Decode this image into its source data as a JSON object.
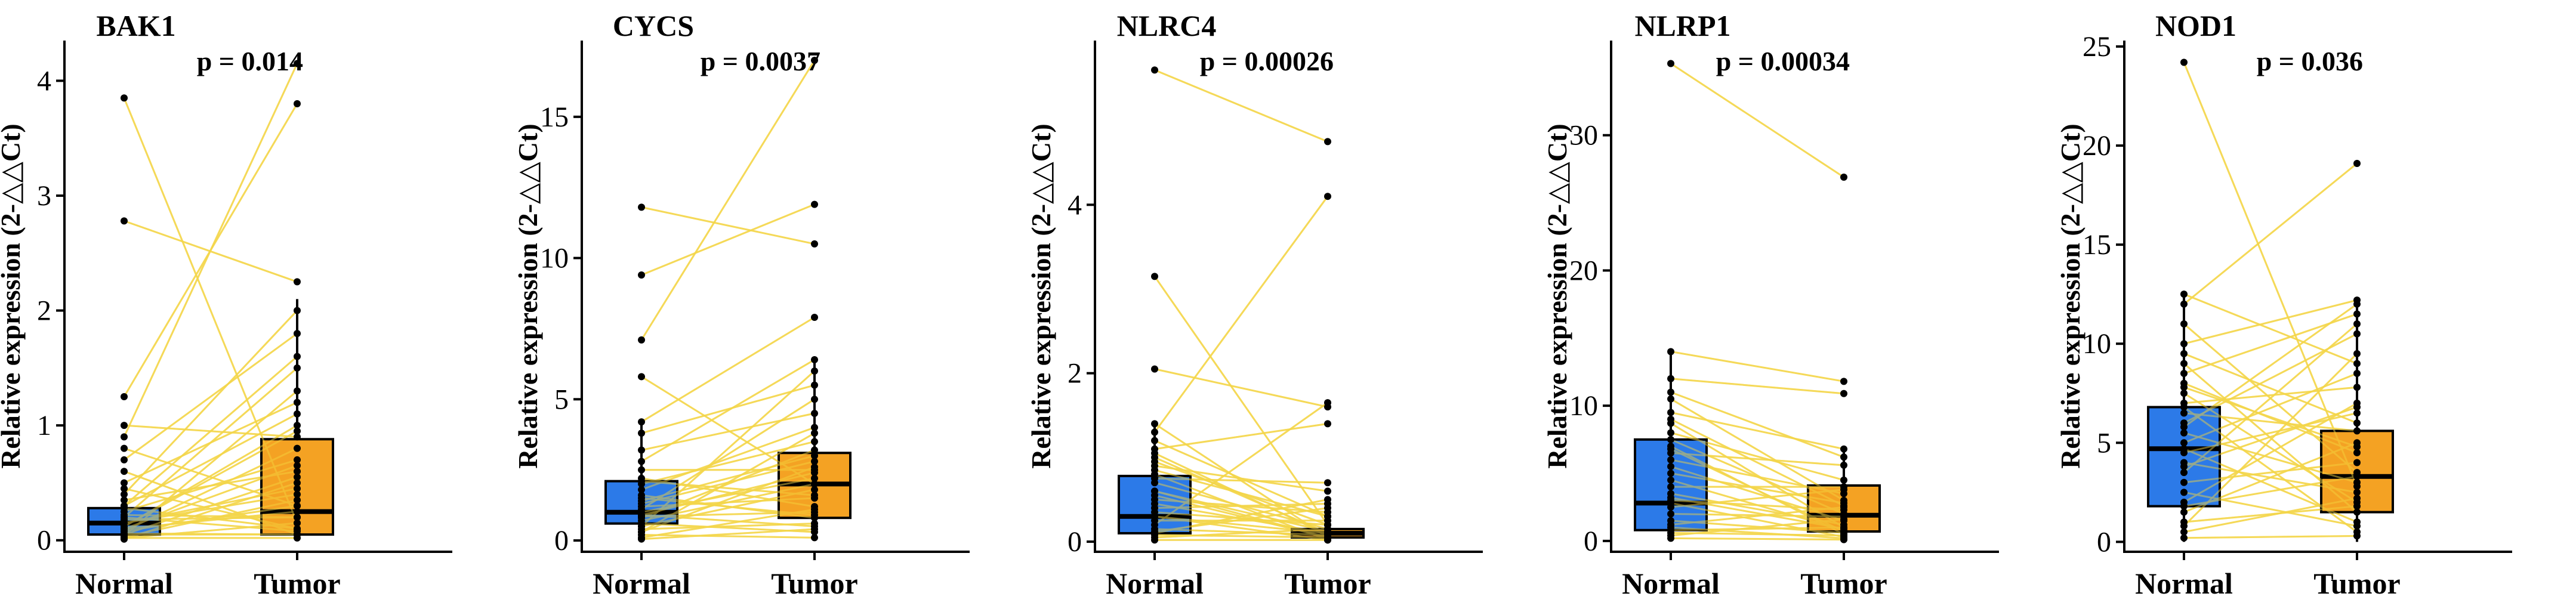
{
  "figure": {
    "ylabel": "Relative expression (2-△△Ct)",
    "groups": [
      "Normal",
      "Tumor"
    ],
    "colors": {
      "normal": "#1a6fe6",
      "tumor": "#f39a10",
      "pair_line": "#f3d64a",
      "axis": "#000000"
    }
  },
  "chart_data": [
    {
      "type": "box",
      "title": "BAK1",
      "pvalue": "p = 0.014",
      "xlabel": "",
      "ylabel": "Relative expression (2-△△Ct)",
      "categories": [
        "Normal",
        "Tumor"
      ],
      "ylim": [
        -0.1,
        4.35
      ],
      "yticks": [
        0,
        1,
        2,
        3,
        4
      ],
      "normal": {
        "q1": 0.05,
        "median": 0.15,
        "q3": 0.28,
        "whisker_low": 0.0,
        "whisker_high": 0.5
      },
      "tumor": {
        "q1": 0.05,
        "median": 0.25,
        "q3": 0.88,
        "whisker_low": 0.0,
        "whisker_high": 2.1
      },
      "pairs": [
        [
          3.85,
          0.15
        ],
        [
          2.78,
          2.25
        ],
        [
          1.25,
          3.8
        ],
        [
          1.0,
          0.9
        ],
        [
          0.9,
          4.15
        ],
        [
          0.8,
          0.3
        ],
        [
          0.7,
          1.8
        ],
        [
          0.6,
          0.05
        ],
        [
          0.5,
          1.2
        ],
        [
          0.4,
          2.0
        ],
        [
          0.35,
          0.6
        ],
        [
          0.3,
          1.6
        ],
        [
          0.28,
          0.1
        ],
        [
          0.25,
          0.7
        ],
        [
          0.2,
          1.5
        ],
        [
          0.18,
          0.2
        ],
        [
          0.15,
          0.45
        ],
        [
          0.12,
          1.0
        ],
        [
          0.1,
          0.25
        ],
        [
          0.08,
          0.8
        ],
        [
          0.06,
          0.05
        ],
        [
          0.05,
          0.55
        ],
        [
          0.04,
          1.3
        ],
        [
          0.03,
          0.35
        ],
        [
          0.02,
          0.02
        ],
        [
          0.02,
          0.15
        ],
        [
          0.01,
          0.5
        ],
        [
          0.05,
          0.05
        ],
        [
          0.1,
          0.65
        ],
        [
          0.15,
          0.4
        ],
        [
          0.2,
          0.08
        ],
        [
          0.3,
          1.1
        ],
        [
          0.22,
          0.2
        ],
        [
          0.12,
          0.95
        ],
        [
          0.08,
          0.3
        ],
        [
          0.45,
          0.1
        ]
      ]
    },
    {
      "type": "box",
      "title": "CYCS",
      "pvalue": "p = 0.0037",
      "xlabel": "",
      "ylabel": "Relative expression (2-△△Ct)",
      "categories": [
        "Normal",
        "Tumor"
      ],
      "ylim": [
        -0.4,
        17.7
      ],
      "yticks": [
        0,
        5,
        10,
        15
      ],
      "normal": {
        "q1": 0.6,
        "median": 1.0,
        "q3": 2.1,
        "whisker_low": 0.0,
        "whisker_high": 4.2
      },
      "tumor": {
        "q1": 0.8,
        "median": 2.0,
        "q3": 3.1,
        "whisker_low": 0.0,
        "whisker_high": 6.4
      },
      "pairs": [
        [
          11.8,
          10.5
        ],
        [
          9.4,
          11.9
        ],
        [
          7.1,
          17.0
        ],
        [
          5.8,
          2.0
        ],
        [
          4.2,
          7.9
        ],
        [
          3.8,
          5.5
        ],
        [
          3.2,
          4.5
        ],
        [
          2.8,
          6.4
        ],
        [
          2.5,
          2.5
        ],
        [
          2.2,
          1.2
        ],
        [
          2.0,
          3.5
        ],
        [
          1.8,
          4.0
        ],
        [
          1.6,
          0.8
        ],
        [
          1.4,
          3.0
        ],
        [
          1.3,
          2.8
        ],
        [
          1.2,
          1.5
        ],
        [
          1.1,
          5.0
        ],
        [
          1.0,
          2.2
        ],
        [
          0.9,
          0.5
        ],
        [
          0.85,
          1.0
        ],
        [
          0.8,
          3.2
        ],
        [
          0.7,
          2.0
        ],
        [
          0.6,
          0.3
        ],
        [
          0.5,
          1.8
        ],
        [
          0.4,
          0.6
        ],
        [
          0.3,
          2.6
        ],
        [
          0.2,
          0.1
        ],
        [
          0.1,
          1.1
        ],
        [
          0.05,
          0.4
        ],
        [
          0.5,
          6.0
        ],
        [
          0.9,
          2.4
        ],
        [
          1.5,
          0.9
        ],
        [
          0.3,
          3.8
        ],
        [
          2.1,
          1.6
        ]
      ]
    },
    {
      "type": "box",
      "title": "NLRC4",
      "pvalue": "p = 0.00026",
      "xlabel": "",
      "ylabel": "Relative expression (2-△△Ct)",
      "categories": [
        "Normal",
        "Tumor"
      ],
      "ylim": [
        -0.12,
        5.95
      ],
      "yticks": [
        0,
        2,
        4
      ],
      "normal": {
        "q1": 0.1,
        "median": 0.3,
        "q3": 0.78,
        "whisker_low": 0.0,
        "whisker_high": 1.4
      },
      "tumor": {
        "q1": 0.05,
        "median": 0.1,
        "q3": 0.15,
        "whisker_low": 0.0,
        "whisker_high": 0.3
      },
      "pairs": [
        [
          5.6,
          4.75
        ],
        [
          3.15,
          0.2
        ],
        [
          2.05,
          1.6
        ],
        [
          1.4,
          0.05
        ],
        [
          1.3,
          4.1
        ],
        [
          1.2,
          0.3
        ],
        [
          1.1,
          1.4
        ],
        [
          1.0,
          0.1
        ],
        [
          0.9,
          0.6
        ],
        [
          0.8,
          0.02
        ],
        [
          0.75,
          0.7
        ],
        [
          0.7,
          0.15
        ],
        [
          0.6,
          0.05
        ],
        [
          0.5,
          0.35
        ],
        [
          0.45,
          0.1
        ],
        [
          0.4,
          0.45
        ],
        [
          0.35,
          0.2
        ],
        [
          0.3,
          0.02
        ],
        [
          0.25,
          0.25
        ],
        [
          0.2,
          1.65
        ],
        [
          0.15,
          0.08
        ],
        [
          0.1,
          0.5
        ],
        [
          0.08,
          0.05
        ],
        [
          0.05,
          0.15
        ],
        [
          0.02,
          0.02
        ],
        [
          0.6,
          0.12
        ],
        [
          1.05,
          0.08
        ],
        [
          0.85,
          0.3
        ],
        [
          0.3,
          0.1
        ],
        [
          0.12,
          0.4
        ],
        [
          0.55,
          0.05
        ],
        [
          0.95,
          0.2
        ]
      ]
    },
    {
      "type": "box",
      "title": "NLRP1",
      "pvalue": "p = 0.00034",
      "xlabel": "",
      "ylabel": "Relative expression (2-△△Ct)",
      "categories": [
        "Normal",
        "Tumor"
      ],
      "ylim": [
        -0.8,
        37.0
      ],
      "yticks": [
        0,
        10,
        20,
        30
      ],
      "normal": {
        "q1": 0.8,
        "median": 2.8,
        "q3": 7.5,
        "whisker_low": 0.0,
        "whisker_high": 14.0
      },
      "tumor": {
        "q1": 0.7,
        "median": 1.9,
        "q3": 4.1,
        "whisker_low": 0.0,
        "whisker_high": 7.0
      },
      "pairs": [
        [
          35.3,
          26.9
        ],
        [
          14.0,
          11.8
        ],
        [
          12.0,
          10.9
        ],
        [
          10.5,
          3.0
        ],
        [
          9.5,
          6.8
        ],
        [
          8.7,
          1.0
        ],
        [
          8.0,
          4.5
        ],
        [
          7.5,
          2.0
        ],
        [
          7.0,
          0.5
        ],
        [
          6.5,
          5.6
        ],
        [
          6.0,
          3.5
        ],
        [
          5.5,
          1.5
        ],
        [
          5.0,
          2.8
        ],
        [
          4.5,
          0.8
        ],
        [
          4.0,
          4.0
        ],
        [
          3.5,
          1.2
        ],
        [
          3.0,
          2.3
        ],
        [
          2.8,
          0.3
        ],
        [
          2.5,
          3.8
        ],
        [
          2.0,
          1.8
        ],
        [
          1.5,
          0.6
        ],
        [
          1.2,
          2.5
        ],
        [
          1.0,
          0.2
        ],
        [
          0.8,
          1.0
        ],
        [
          0.6,
          0.4
        ],
        [
          0.4,
          1.6
        ],
        [
          0.2,
          0.1
        ],
        [
          9.0,
          2.6
        ],
        [
          11.0,
          6.2
        ],
        [
          3.2,
          0.9
        ],
        [
          6.8,
          0.7
        ]
      ]
    },
    {
      "type": "box",
      "title": "NOD1",
      "pvalue": "p = 0.036",
      "xlabel": "",
      "ylabel": "Relative expression (2-△△Ct)",
      "categories": [
        "Normal",
        "Tumor"
      ],
      "ylim": [
        -0.5,
        25.3
      ],
      "yticks": [
        0,
        5,
        10,
        15,
        20,
        25
      ],
      "normal": {
        "q1": 1.8,
        "median": 4.7,
        "q3": 6.8,
        "whisker_low": 0.0,
        "whisker_high": 12.5
      },
      "tumor": {
        "q1": 1.5,
        "median": 3.3,
        "q3": 5.6,
        "whisker_low": 0.0,
        "whisker_high": 12.3
      },
      "pairs": [
        [
          24.2,
          2.8
        ],
        [
          12.5,
          9.0
        ],
        [
          12.0,
          19.1
        ],
        [
          11.0,
          3.5
        ],
        [
          10.0,
          12.2
        ],
        [
          9.5,
          6.0
        ],
        [
          9.0,
          1.5
        ],
        [
          8.5,
          11.5
        ],
        [
          8.0,
          4.5
        ],
        [
          7.5,
          2.0
        ],
        [
          7.0,
          7.8
        ],
        [
          6.8,
          0.5
        ],
        [
          6.5,
          5.6
        ],
        [
          6.0,
          10.5
        ],
        [
          5.5,
          3.0
        ],
        [
          5.0,
          8.5
        ],
        [
          4.7,
          1.0
        ],
        [
          4.5,
          6.5
        ],
        [
          4.0,
          2.5
        ],
        [
          3.5,
          11.0
        ],
        [
          3.0,
          4.0
        ],
        [
          2.5,
          0.8
        ],
        [
          2.0,
          7.0
        ],
        [
          1.8,
          3.3
        ],
        [
          1.5,
          5.0
        ],
        [
          1.0,
          1.8
        ],
        [
          0.8,
          9.5
        ],
        [
          0.5,
          2.2
        ],
        [
          0.2,
          0.3
        ],
        [
          7.8,
          4.8
        ],
        [
          5.8,
          12.0
        ],
        [
          3.8,
          6.8
        ]
      ]
    }
  ]
}
